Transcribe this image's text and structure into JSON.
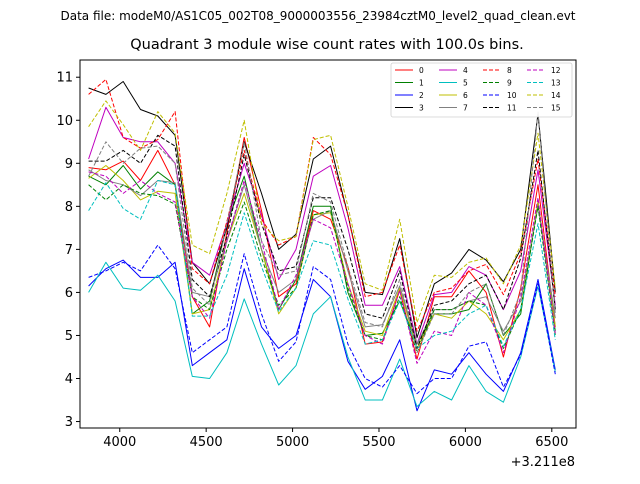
{
  "header_text": "Data file: modeM0/AS1C05_002T08_9000003556_23984cztM0_level2_quad_clean.evt",
  "chart_data": {
    "type": "line",
    "title": "Quadrant 3 module wise count rates with 100.0s bins.",
    "xlabel": "",
    "ylabel": "",
    "x_offset_label": "+3.211e8",
    "xlim": [
      3770,
      6640
    ],
    "ylim": [
      2.85,
      11.4
    ],
    "x_ticks": [
      4000,
      4500,
      5000,
      5500,
      6000,
      6500
    ],
    "y_ticks": [
      3,
      4,
      5,
      6,
      7,
      8,
      9,
      10,
      11
    ],
    "grid": false,
    "legend_position": "top-right",
    "x": [
      3820,
      3920,
      4020,
      4120,
      4220,
      4320,
      4420,
      4520,
      4620,
      4720,
      4820,
      4920,
      5020,
      5120,
      5220,
      5320,
      5420,
      5520,
      5620,
      5720,
      5820,
      5920,
      6020,
      6120,
      6220,
      6320,
      6420,
      6520
    ],
    "series": [
      {
        "name": "0",
        "color": "#ff0000",
        "style": "solid",
        "values": [
          8.9,
          8.85,
          9.05,
          8.6,
          9.3,
          8.5,
          5.9,
          5.2,
          7.4,
          9.6,
          7.9,
          5.9,
          6.2,
          7.9,
          7.7,
          6.6,
          4.8,
          4.85,
          6.05,
          4.45,
          5.9,
          5.9,
          6.5,
          6.0,
          4.5,
          6.1,
          8.5,
          5.2
        ]
      },
      {
        "name": "1",
        "color": "#008000",
        "style": "solid",
        "values": [
          8.7,
          8.5,
          8.95,
          8.4,
          8.8,
          8.5,
          5.5,
          5.8,
          7.6,
          8.7,
          7.0,
          5.6,
          6.3,
          8.0,
          8.0,
          6.0,
          5.0,
          5.05,
          5.8,
          4.8,
          5.5,
          5.5,
          5.6,
          6.2,
          5.0,
          5.5,
          8.1,
          5.1
        ]
      },
      {
        "name": "2",
        "color": "#0000ff",
        "style": "solid",
        "values": [
          6.15,
          6.55,
          6.75,
          6.35,
          6.35,
          6.7,
          4.3,
          4.6,
          4.9,
          6.55,
          5.2,
          4.7,
          5.0,
          6.3,
          5.9,
          4.4,
          3.75,
          4.05,
          4.9,
          3.25,
          4.2,
          4.1,
          4.6,
          4.1,
          3.7,
          4.6,
          6.3,
          4.2
        ]
      },
      {
        "name": "3",
        "color": "#000000",
        "style": "solid",
        "values": [
          10.75,
          10.6,
          10.9,
          10.25,
          10.1,
          9.65,
          6.7,
          6.2,
          7.5,
          9.5,
          8.3,
          7.0,
          7.35,
          9.1,
          9.4,
          7.8,
          6.0,
          5.95,
          7.25,
          4.95,
          6.2,
          6.45,
          7.0,
          6.75,
          6.25,
          7.0,
          10.15,
          6.0
        ]
      },
      {
        "name": "4",
        "color": "#bf00bf",
        "style": "solid",
        "values": [
          9.1,
          10.3,
          9.6,
          9.5,
          9.5,
          9.0,
          6.7,
          6.4,
          7.6,
          9.0,
          7.8,
          6.3,
          7.0,
          8.7,
          8.95,
          7.5,
          5.7,
          5.7,
          6.6,
          4.8,
          5.95,
          6.0,
          6.6,
          6.4,
          5.6,
          6.5,
          8.85,
          5.7
        ]
      },
      {
        "name": "5",
        "color": "#00bfbf",
        "style": "solid",
        "values": [
          6.0,
          6.7,
          6.1,
          6.05,
          6.4,
          5.8,
          4.05,
          4.0,
          4.6,
          5.85,
          4.8,
          3.85,
          4.3,
          5.5,
          5.9,
          4.5,
          3.5,
          3.5,
          4.45,
          3.35,
          3.7,
          3.5,
          4.3,
          3.7,
          3.45,
          4.5,
          6.15,
          4.15
        ]
      },
      {
        "name": "6",
        "color": "#bfbf00",
        "style": "solid",
        "values": [
          8.65,
          8.95,
          8.6,
          8.15,
          8.35,
          8.3,
          5.5,
          5.6,
          7.2,
          8.3,
          7.0,
          5.5,
          6.1,
          7.8,
          7.85,
          6.2,
          5.1,
          5.0,
          6.1,
          4.7,
          5.5,
          5.4,
          5.8,
          5.5,
          4.9,
          5.6,
          8.1,
          5.2
        ]
      },
      {
        "name": "7",
        "color": "#808080",
        "style": "solid",
        "values": [
          8.85,
          8.6,
          8.5,
          8.25,
          8.6,
          8.55,
          6.0,
          5.9,
          7.2,
          8.5,
          7.0,
          6.0,
          6.3,
          7.7,
          7.9,
          6.5,
          5.2,
          5.25,
          6.15,
          4.8,
          5.6,
          5.6,
          5.8,
          5.9,
          5.1,
          5.8,
          8.0,
          5.4
        ]
      },
      {
        "name": "8",
        "color": "#ff0000",
        "style": "dashed",
        "values": [
          10.6,
          10.95,
          9.6,
          9.35,
          9.55,
          10.2,
          6.55,
          6.2,
          7.65,
          9.3,
          7.7,
          7.1,
          7.3,
          9.6,
          9.2,
          7.8,
          5.9,
          6.0,
          7.1,
          5.1,
          6.0,
          6.1,
          6.5,
          6.65,
          5.95,
          6.9,
          9.1,
          5.9
        ]
      },
      {
        "name": "9",
        "color": "#008000",
        "style": "dashed",
        "values": [
          8.5,
          8.15,
          8.5,
          8.3,
          8.25,
          8.05,
          5.9,
          5.6,
          7.0,
          8.1,
          6.8,
          5.7,
          6.1,
          7.8,
          7.9,
          6.1,
          5.0,
          4.9,
          5.9,
          4.6,
          5.6,
          5.6,
          5.8,
          5.7,
          4.7,
          5.6,
          8.0,
          5.0
        ]
      },
      {
        "name": "10",
        "color": "#0000ff",
        "style": "dashed",
        "values": [
          6.35,
          6.5,
          6.7,
          6.5,
          7.1,
          6.55,
          4.6,
          4.9,
          5.2,
          6.9,
          5.5,
          4.4,
          4.85,
          6.6,
          6.3,
          4.8,
          4.0,
          3.8,
          4.3,
          3.65,
          4.0,
          4.0,
          4.75,
          4.85,
          3.8,
          4.55,
          6.2,
          4.1
        ]
      },
      {
        "name": "11",
        "color": "#000000",
        "style": "dashed",
        "values": [
          9.05,
          9.05,
          9.3,
          9.0,
          9.65,
          9.4,
          6.3,
          5.9,
          7.3,
          9.2,
          7.6,
          6.5,
          6.6,
          8.2,
          8.2,
          7.0,
          5.5,
          5.4,
          6.5,
          4.7,
          5.7,
          5.8,
          6.2,
          6.4,
          5.6,
          6.8,
          9.3,
          5.6
        ]
      },
      {
        "name": "12",
        "color": "#bf00bf",
        "style": "dashed",
        "values": [
          8.8,
          8.7,
          8.3,
          8.6,
          8.3,
          8.1,
          5.9,
          5.4,
          7.2,
          8.6,
          7.2,
          5.6,
          6.4,
          7.7,
          7.5,
          6.2,
          5.0,
          4.8,
          6.05,
          4.35,
          5.1,
          5.0,
          6.0,
          5.7,
          4.6,
          5.9,
          8.2,
          5.05
        ]
      },
      {
        "name": "13",
        "color": "#00bfbf",
        "style": "dashed",
        "values": [
          7.9,
          8.55,
          7.95,
          7.7,
          8.6,
          8.5,
          5.45,
          5.45,
          6.4,
          7.85,
          6.6,
          5.55,
          6.1,
          7.2,
          7.1,
          5.85,
          4.8,
          4.9,
          5.8,
          4.7,
          5.0,
          5.1,
          5.5,
          5.7,
          4.75,
          5.6,
          7.6,
          4.9
        ]
      },
      {
        "name": "14",
        "color": "#bfbf00",
        "style": "dashed",
        "values": [
          9.85,
          10.45,
          9.9,
          9.3,
          10.2,
          9.7,
          7.1,
          6.9,
          8.3,
          10.0,
          7.6,
          7.2,
          7.3,
          9.55,
          9.65,
          8.0,
          6.2,
          6.05,
          7.7,
          5.3,
          6.4,
          6.35,
          6.7,
          6.8,
          6.2,
          7.1,
          9.7,
          6.1
        ]
      },
      {
        "name": "15",
        "color": "#808080",
        "style": "dashed",
        "values": [
          8.7,
          9.5,
          9.0,
          9.35,
          9.4,
          9.0,
          6.1,
          5.7,
          7.6,
          9.5,
          7.2,
          6.4,
          6.5,
          8.3,
          8.1,
          6.6,
          5.3,
          5.2,
          6.3,
          4.6,
          5.5,
          5.5,
          6.0,
          6.2,
          5.0,
          6.0,
          10.2,
          5.5
        ]
      }
    ]
  }
}
